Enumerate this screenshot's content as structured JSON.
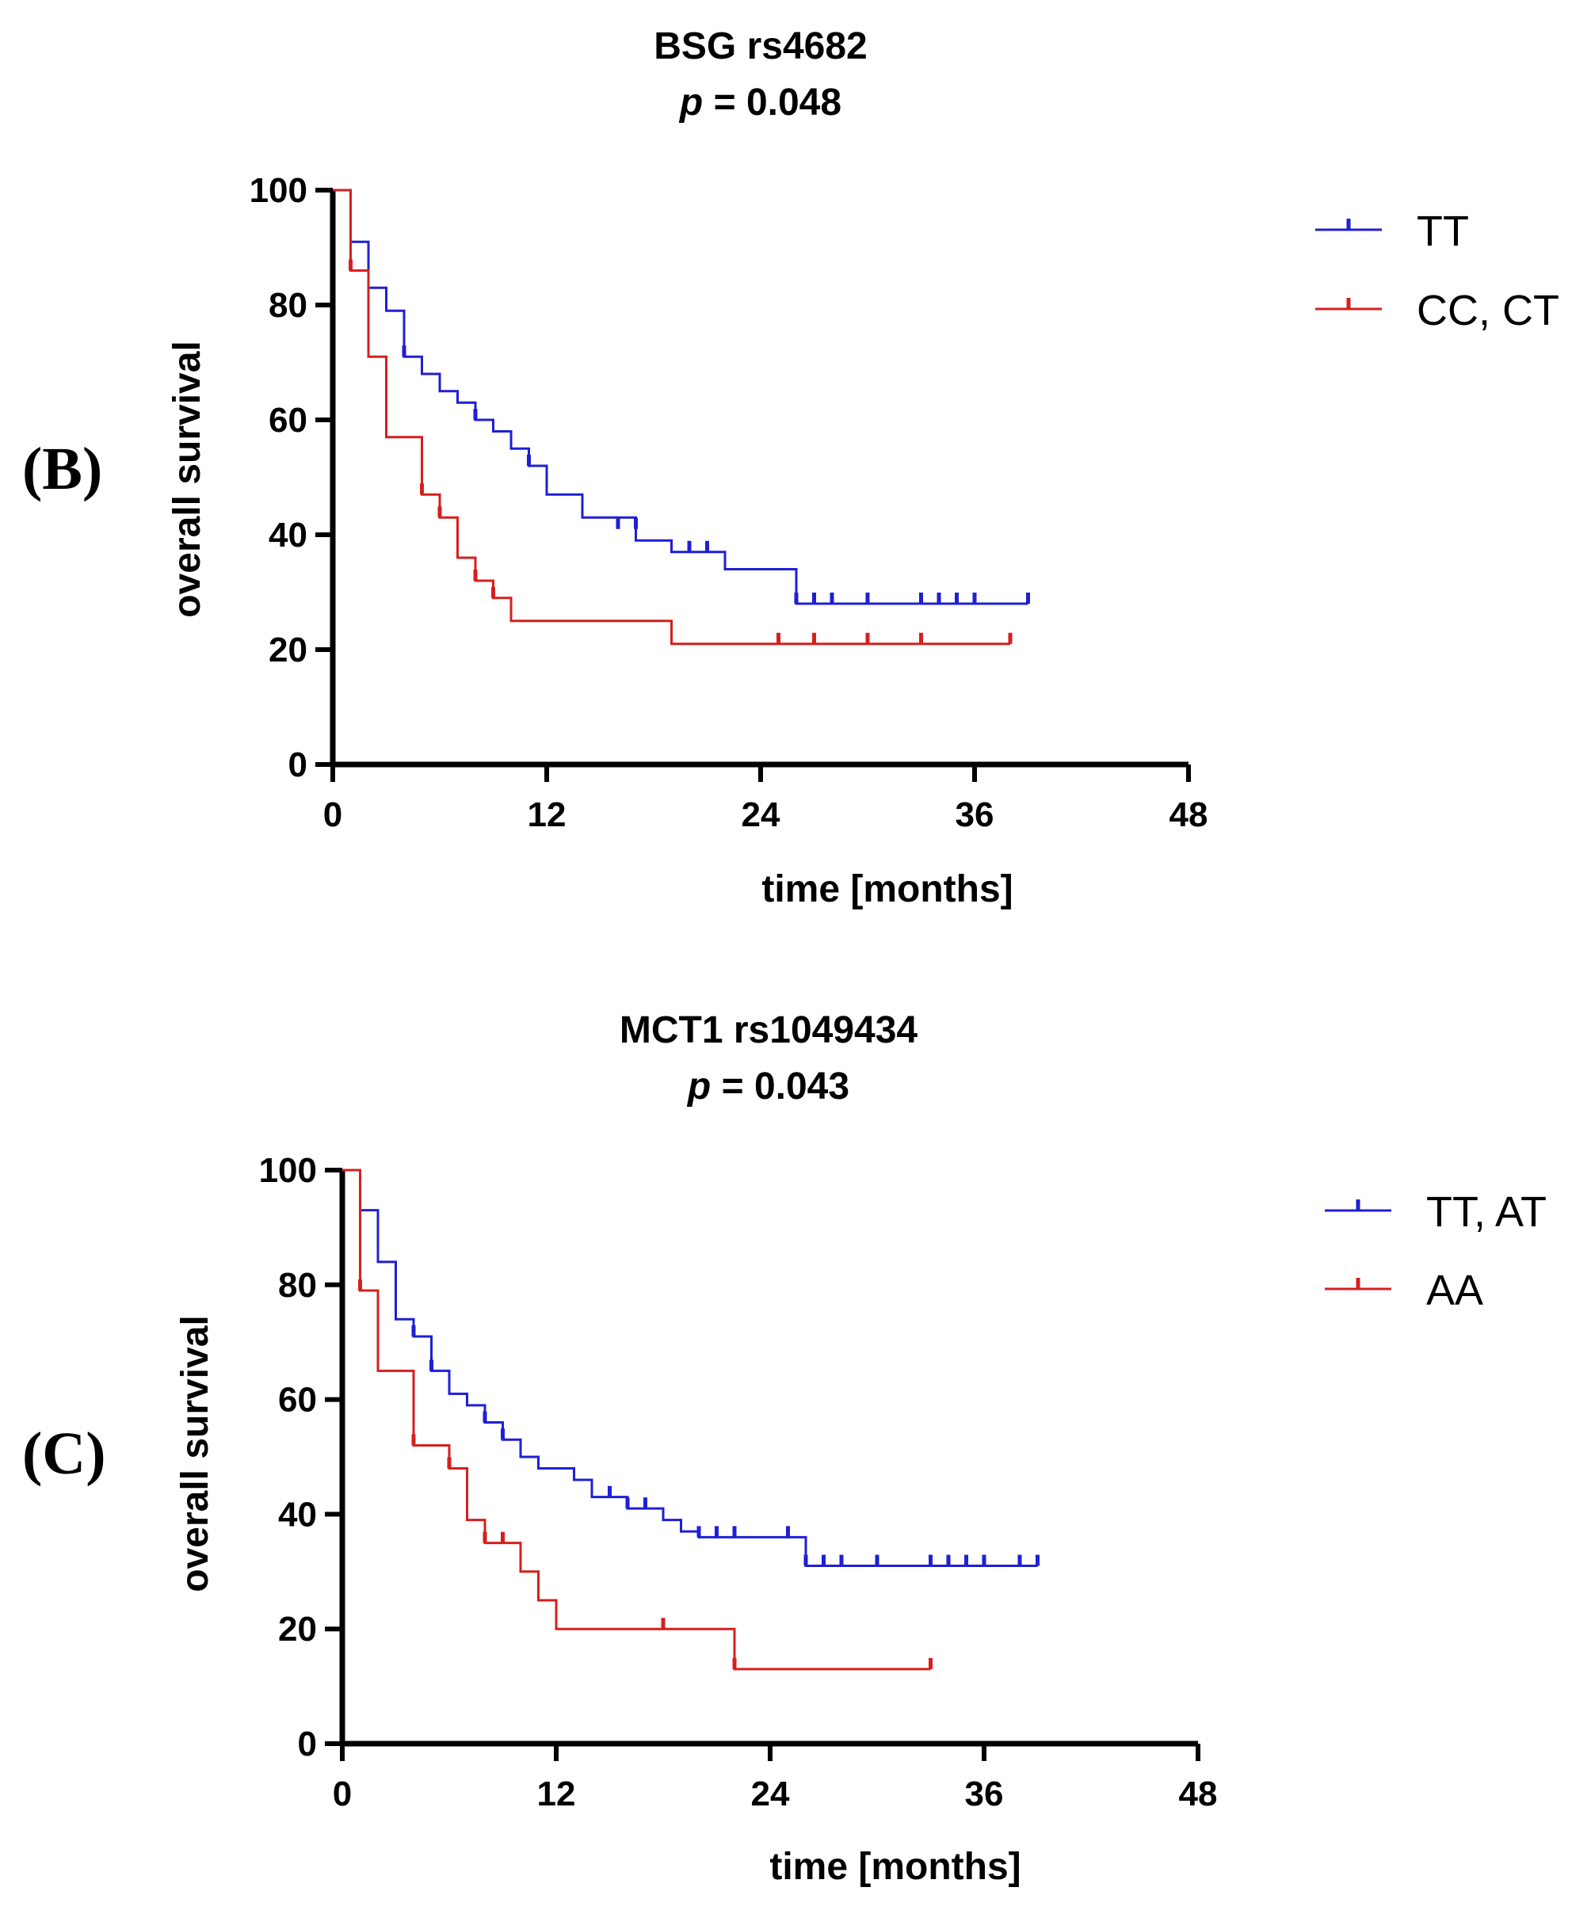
{
  "chart_data": [
    {
      "type": "line",
      "subtype": "kaplan-meier",
      "panel_label": "(B)",
      "title": "BSG rs4682",
      "p_prefix": "p",
      "p_value": " = 0.048",
      "xlabel": "time [months]",
      "ylabel": "overall survival",
      "xlim": [
        0,
        48
      ],
      "ylim": [
        0,
        100
      ],
      "xticks": [
        0,
        12,
        24,
        36,
        48
      ],
      "yticks": [
        0,
        20,
        40,
        60,
        80,
        100
      ],
      "legend_position": "right",
      "series": [
        {
          "name": "TT",
          "color": "#1f1fd6",
          "steps": [
            [
              0,
              100
            ],
            [
              1,
              91
            ],
            [
              2,
              83
            ],
            [
              3,
              79
            ],
            [
              4,
              71
            ],
            [
              5,
              68
            ],
            [
              6,
              65
            ],
            [
              7,
              63
            ],
            [
              8,
              60
            ],
            [
              9,
              58
            ],
            [
              10,
              55
            ],
            [
              11,
              52
            ],
            [
              12,
              47
            ],
            [
              14,
              43
            ],
            [
              17,
              39
            ],
            [
              19,
              37
            ],
            [
              22,
              34
            ],
            [
              26,
              28
            ],
            [
              39,
              28
            ]
          ],
          "censored": [
            [
              4,
              71
            ],
            [
              8,
              60
            ],
            [
              11,
              52
            ],
            [
              16,
              41
            ],
            [
              17,
              41
            ],
            [
              20,
              37
            ],
            [
              21,
              37
            ],
            [
              26,
              28
            ],
            [
              27,
              28
            ],
            [
              28,
              28
            ],
            [
              30,
              28
            ],
            [
              33,
              28
            ],
            [
              34,
              28
            ],
            [
              35,
              28
            ],
            [
              36,
              28
            ],
            [
              39,
              28
            ]
          ]
        },
        {
          "name": "CC, CT",
          "color": "#d61f1f",
          "steps": [
            [
              0,
              100
            ],
            [
              1,
              86
            ],
            [
              2,
              71
            ],
            [
              3,
              57
            ],
            [
              5,
              47
            ],
            [
              6,
              43
            ],
            [
              7,
              36
            ],
            [
              8,
              32
            ],
            [
              9,
              29
            ],
            [
              10,
              25
            ],
            [
              19,
              21
            ],
            [
              38,
              21
            ]
          ],
          "censored": [
            [
              1,
              86
            ],
            [
              5,
              47
            ],
            [
              6,
              43
            ],
            [
              8,
              32
            ],
            [
              9,
              29
            ],
            [
              25,
              21
            ],
            [
              27,
              21
            ],
            [
              30,
              21
            ],
            [
              33,
              21
            ],
            [
              38,
              21
            ]
          ]
        }
      ]
    },
    {
      "type": "line",
      "subtype": "kaplan-meier",
      "panel_label": "(C)",
      "title": "MCT1 rs1049434",
      "p_prefix": "p",
      "p_value": " = 0.043",
      "xlabel": "time [months]",
      "ylabel": "overall survival",
      "xlim": [
        0,
        48
      ],
      "ylim": [
        0,
        100
      ],
      "xticks": [
        0,
        12,
        24,
        36,
        48
      ],
      "yticks": [
        0,
        20,
        40,
        60,
        80,
        100
      ],
      "legend_position": "right",
      "series": [
        {
          "name": "TT, AT",
          "color": "#1f1fd6",
          "steps": [
            [
              0,
              100
            ],
            [
              1,
              93
            ],
            [
              2,
              84
            ],
            [
              3,
              74
            ],
            [
              4,
              71
            ],
            [
              5,
              65
            ],
            [
              6,
              61
            ],
            [
              7,
              59
            ],
            [
              8,
              56
            ],
            [
              9,
              53
            ],
            [
              10,
              50
            ],
            [
              11,
              48
            ],
            [
              13,
              46
            ],
            [
              14,
              43
            ],
            [
              16,
              41
            ],
            [
              18,
              39
            ],
            [
              19,
              37
            ],
            [
              20,
              36
            ],
            [
              26,
              31
            ],
            [
              39,
              31
            ]
          ],
          "censored": [
            [
              4,
              71
            ],
            [
              5,
              65
            ],
            [
              8,
              56
            ],
            [
              9,
              53
            ],
            [
              15,
              43
            ],
            [
              16,
              41
            ],
            [
              17,
              41
            ],
            [
              20,
              36
            ],
            [
              21,
              36
            ],
            [
              22,
              36
            ],
            [
              25,
              36
            ],
            [
              26,
              31
            ],
            [
              27,
              31
            ],
            [
              28,
              31
            ],
            [
              30,
              31
            ],
            [
              33,
              31
            ],
            [
              34,
              31
            ],
            [
              35,
              31
            ],
            [
              36,
              31
            ],
            [
              38,
              31
            ],
            [
              39,
              31
            ]
          ]
        },
        {
          "name": "AA",
          "color": "#d61f1f",
          "steps": [
            [
              0,
              100
            ],
            [
              1,
              79
            ],
            [
              2,
              65
            ],
            [
              4,
              52
            ],
            [
              6,
              48
            ],
            [
              7,
              39
            ],
            [
              8,
              35
            ],
            [
              10,
              30
            ],
            [
              11,
              25
            ],
            [
              12,
              20
            ],
            [
              22,
              13
            ],
            [
              33,
              13
            ]
          ],
          "censored": [
            [
              1,
              79
            ],
            [
              4,
              52
            ],
            [
              6,
              48
            ],
            [
              8,
              35
            ],
            [
              9,
              35
            ],
            [
              18,
              20
            ],
            [
              22,
              13
            ],
            [
              33,
              13
            ]
          ]
        }
      ]
    }
  ]
}
